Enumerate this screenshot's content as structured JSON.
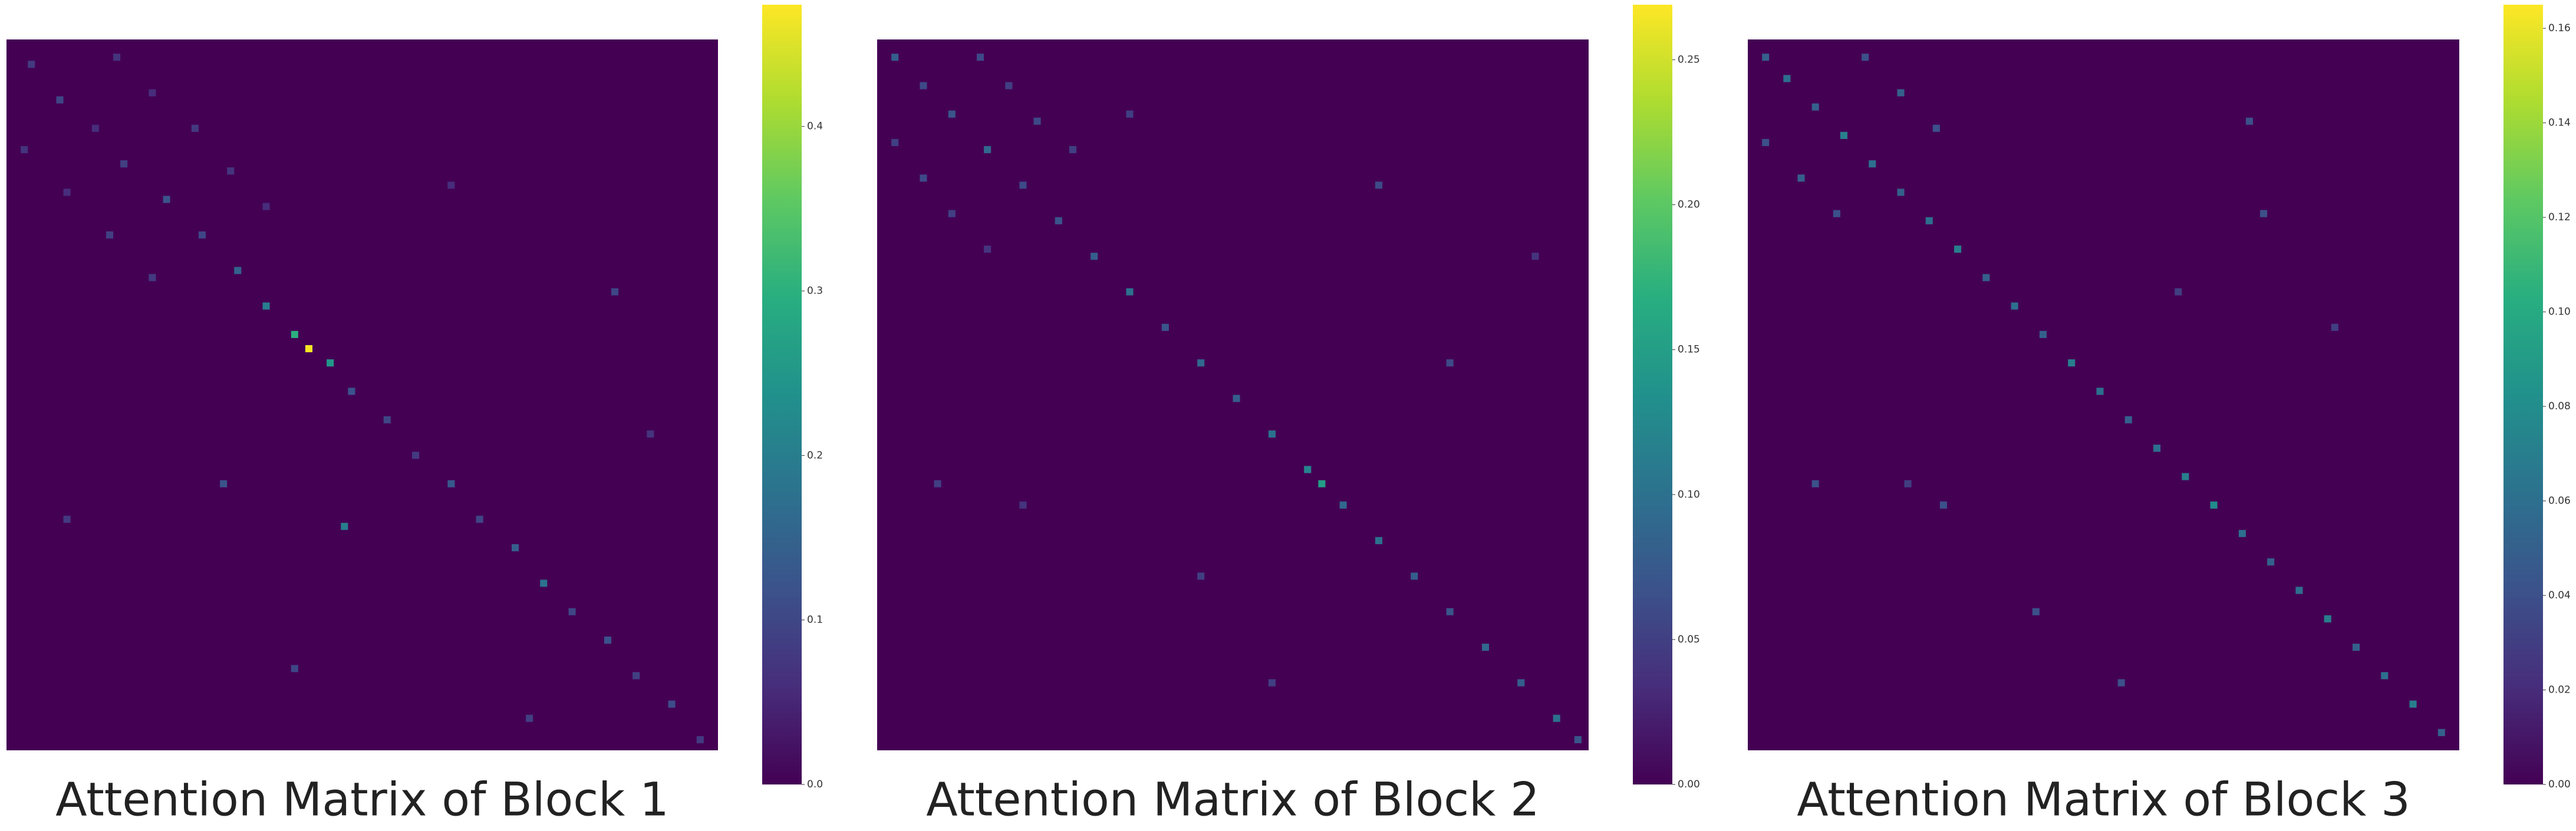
{
  "chart_data": [
    {
      "type": "heatmap",
      "title": "Attention Matrix of Block 1",
      "xlim": [
        0,
        100
      ],
      "ylim": [
        0,
        100
      ],
      "zlim": [
        0,
        0.474
      ],
      "zticks": [
        {
          "value": 0,
          "label": "0.0"
        },
        0.1,
        0.2,
        0.3,
        0.4
      ],
      "x": [
        3,
        7,
        12,
        16,
        22,
        27,
        32,
        36,
        40,
        42,
        45,
        48,
        53,
        57,
        62,
        66,
        71,
        75,
        79,
        84,
        88,
        93,
        97,
        15,
        20,
        26,
        31,
        36,
        2,
        8,
        14,
        20,
        30,
        47,
        8,
        85,
        73,
        62,
        90,
        40
      ],
      "y": [
        3,
        8,
        12,
        17,
        22,
        27,
        32,
        37,
        41,
        43,
        45,
        49,
        53,
        58,
        62,
        67,
        71,
        76,
        80,
        84,
        89,
        93,
        98,
        2,
        7,
        12,
        18,
        23,
        15,
        21,
        27,
        33,
        62,
        68,
        67,
        35,
        95,
        20,
        55,
        88
      ],
      "values": [
        0.08,
        0.1,
        0.06,
        0.09,
        0.12,
        0.1,
        0.15,
        0.2,
        0.3,
        0.47,
        0.25,
        0.12,
        0.1,
        0.08,
        0.13,
        0.1,
        0.14,
        0.18,
        0.1,
        0.12,
        0.09,
        0.11,
        0.08,
        0.07,
        0.06,
        0.08,
        0.07,
        0.06,
        0.07,
        0.06,
        0.09,
        0.08,
        0.12,
        0.2,
        0.08,
        0.1,
        0.09,
        0.06,
        0.07,
        0.1
      ]
    },
    {
      "type": "heatmap",
      "title": "Attention Matrix of Block 2",
      "xlim": [
        0,
        100
      ],
      "ylim": [
        0,
        100
      ],
      "zlim": [
        0,
        0.269
      ],
      "zticks": [
        {
          "value": 0,
          "label": "0.00"
        },
        0.05,
        {
          "value": 0.1,
          "label": "0.10"
        },
        0.15,
        {
          "value": 0.2,
          "label": "0.20"
        },
        0.25
      ],
      "x": [
        2,
        6,
        10,
        15,
        20,
        25,
        30,
        35,
        40,
        45,
        50,
        55,
        60,
        62,
        65,
        70,
        75,
        80,
        85,
        90,
        95,
        98,
        14,
        18,
        22,
        27,
        2,
        6,
        10,
        15,
        35,
        70,
        8,
        20,
        55,
        80,
        45,
        92
      ],
      "y": [
        2,
        6,
        10,
        15,
        20,
        25,
        30,
        35,
        40,
        45,
        50,
        55,
        60,
        62,
        65,
        70,
        75,
        80,
        85,
        90,
        95,
        98,
        2,
        6,
        11,
        15,
        14,
        19,
        24,
        29,
        10,
        20,
        62,
        65,
        90,
        45,
        75,
        30
      ],
      "values": [
        0.08,
        0.06,
        0.07,
        0.09,
        0.06,
        0.07,
        0.08,
        0.1,
        0.07,
        0.09,
        0.08,
        0.1,
        0.12,
        0.15,
        0.09,
        0.1,
        0.08,
        0.07,
        0.09,
        0.08,
        0.1,
        0.07,
        0.06,
        0.05,
        0.06,
        0.05,
        0.05,
        0.06,
        0.05,
        0.04,
        0.05,
        0.06,
        0.05,
        0.04,
        0.05,
        0.06,
        0.05,
        0.04
      ]
    },
    {
      "type": "heatmap",
      "title": "Attention Matrix of Block 3",
      "xlim": [
        0,
        100
      ],
      "ylim": [
        0,
        100
      ],
      "zlim": [
        0,
        0.165
      ],
      "zticks": [
        {
          "value": 0,
          "label": "0.00"
        },
        0.02,
        0.04,
        0.06,
        0.08,
        {
          "value": 0.1,
          "label": "0.10"
        },
        0.12,
        0.14,
        0.16
      ],
      "x": [
        2,
        5,
        9,
        13,
        17,
        21,
        25,
        29,
        33,
        37,
        41,
        45,
        49,
        53,
        57,
        61,
        65,
        69,
        73,
        77,
        81,
        85,
        89,
        93,
        97,
        16,
        21,
        26,
        2,
        7,
        12,
        70,
        72,
        9,
        22,
        27,
        52,
        82,
        40,
        60
      ],
      "y": [
        2,
        5,
        9,
        13,
        17,
        21,
        25,
        29,
        33,
        37,
        41,
        45,
        49,
        53,
        57,
        61,
        65,
        69,
        73,
        77,
        81,
        85,
        89,
        93,
        97,
        2,
        7,
        12,
        14,
        19,
        24,
        11,
        24,
        62,
        62,
        65,
        90,
        40,
        80,
        35
      ],
      "values": [
        0.05,
        0.06,
        0.05,
        0.07,
        0.06,
        0.05,
        0.06,
        0.07,
        0.05,
        0.06,
        0.05,
        0.07,
        0.06,
        0.05,
        0.06,
        0.07,
        0.08,
        0.06,
        0.05,
        0.06,
        0.07,
        0.05,
        0.06,
        0.07,
        0.05,
        0.04,
        0.05,
        0.04,
        0.04,
        0.05,
        0.04,
        0.04,
        0.04,
        0.04,
        0.03,
        0.04,
        0.04,
        0.03,
        0.04,
        0.03
      ]
    }
  ]
}
